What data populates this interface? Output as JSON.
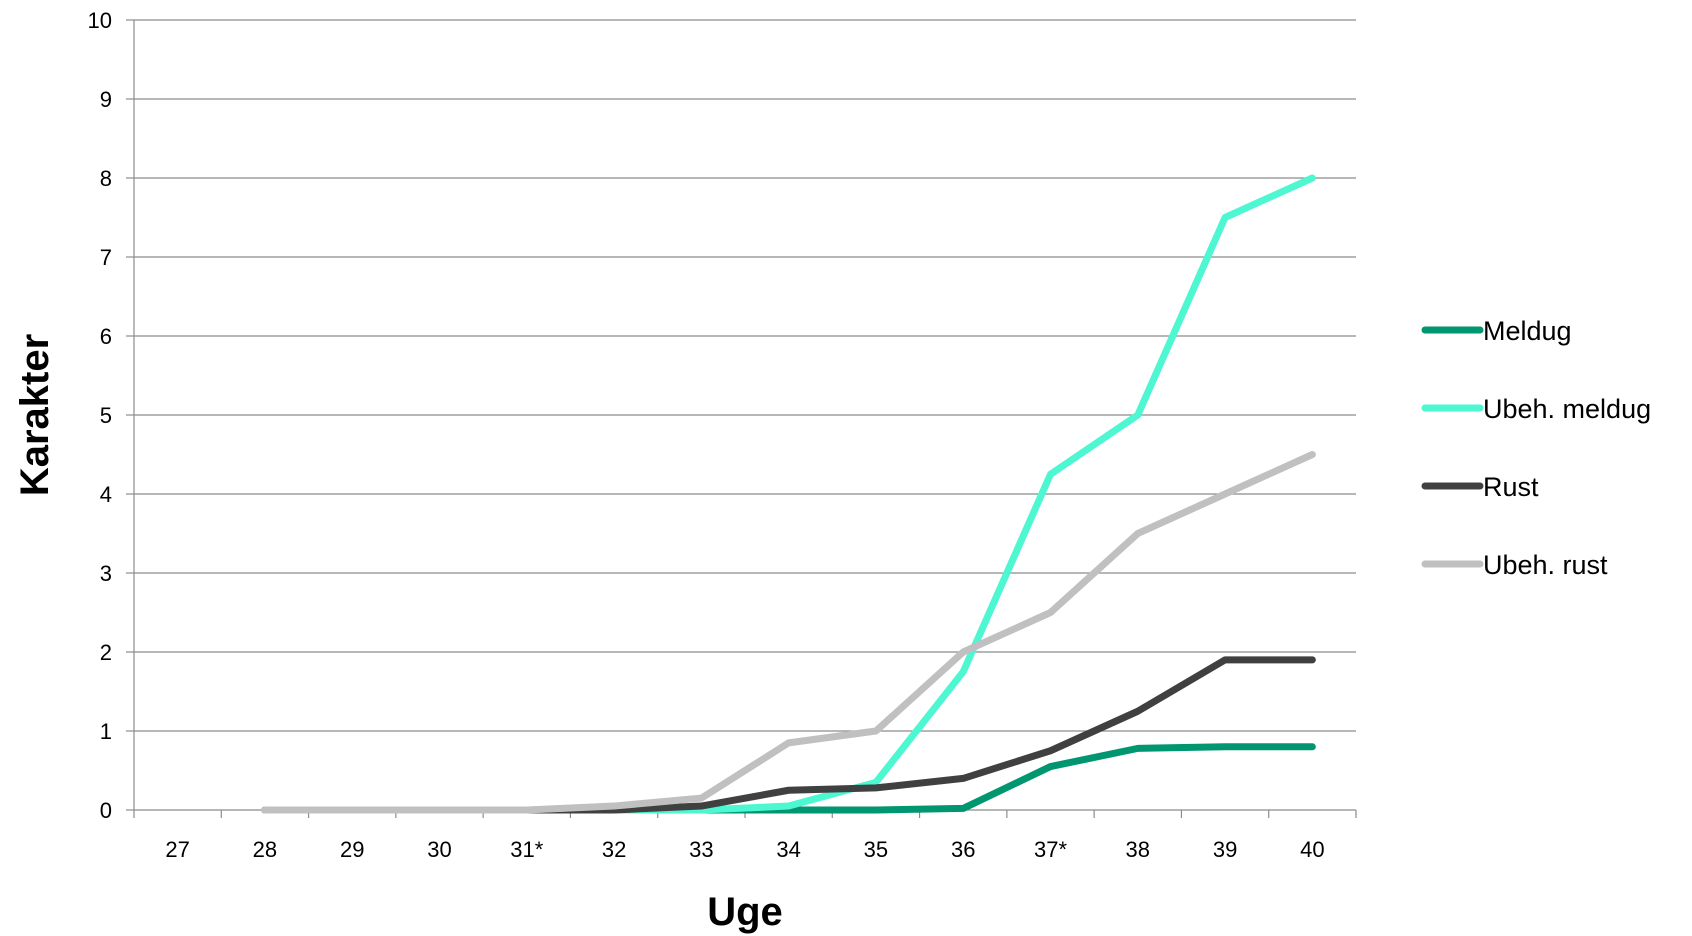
{
  "chart_data": {
    "type": "line",
    "title": "",
    "xlabel": "Uge",
    "ylabel": "Karakter",
    "categories": [
      "27",
      "28",
      "29",
      "30",
      "31*",
      "32",
      "33",
      "34",
      "35",
      "36",
      "37*",
      "38",
      "39",
      "40"
    ],
    "ylim": [
      0,
      10
    ],
    "yticks": [
      0,
      1,
      2,
      3,
      4,
      5,
      6,
      7,
      8,
      9,
      10
    ],
    "grid": "horizontal",
    "legend_position": "right",
    "series": [
      {
        "name": "Meldug",
        "color": "#009670",
        "values": [
          null,
          0,
          0,
          0,
          0,
          0,
          0,
          0,
          0,
          0.02,
          0.55,
          0.78,
          0.8,
          0.8
        ]
      },
      {
        "name": "Ubeh. meldug",
        "color": "#4DF7D1",
        "values": [
          null,
          0,
          0,
          0,
          0,
          0,
          0,
          0.05,
          0.35,
          1.75,
          4.25,
          5.0,
          7.5,
          8.0
        ]
      },
      {
        "name": "Rust",
        "color": "#404040",
        "values": [
          null,
          0,
          0,
          0,
          0,
          0,
          0.05,
          0.25,
          0.28,
          0.4,
          0.75,
          1.25,
          1.9,
          1.9
        ]
      },
      {
        "name": "Ubeh. rust",
        "color": "#C0C0C0",
        "values": [
          null,
          0,
          0,
          0,
          0,
          0.05,
          0.15,
          0.85,
          1.0,
          2.0,
          2.5,
          3.5,
          4.0,
          4.5
        ]
      }
    ]
  }
}
